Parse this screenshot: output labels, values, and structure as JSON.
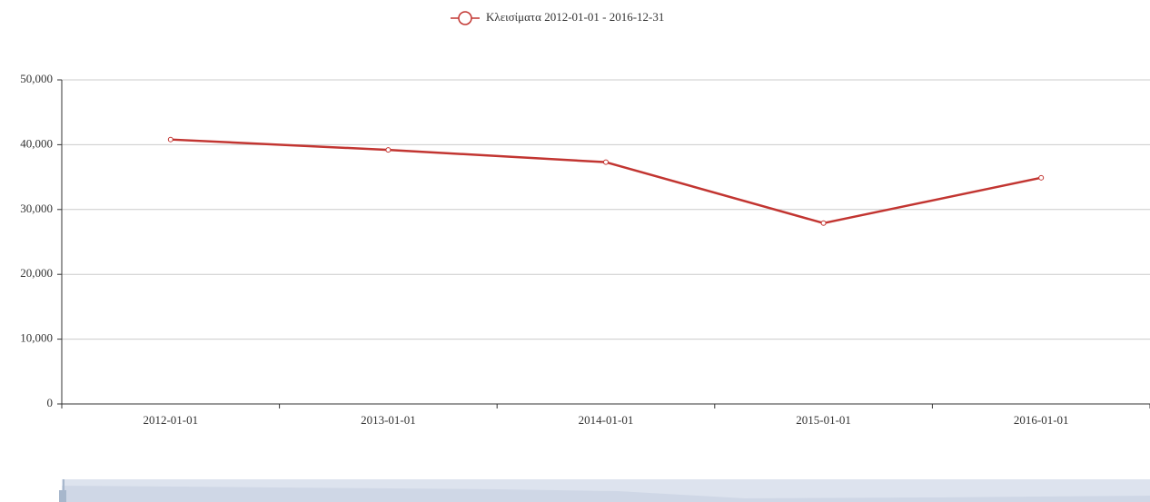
{
  "chart_data": {
    "type": "line",
    "legend": "Κλεισίματα 2012-01-01 - 2016-12-31",
    "categories": [
      "2012-01-01",
      "2013-01-01",
      "2014-01-01",
      "2015-01-01",
      "2016-01-01"
    ],
    "series": [
      {
        "name": "Κλεισίματα 2012-01-01 - 2016-12-31",
        "color": "#c23531",
        "values": [
          40800,
          39200,
          37300,
          27900,
          34900
        ]
      }
    ],
    "ylim": [
      0,
      50000
    ],
    "yticks": [
      0,
      {
        "value": 10000,
        "label": "10,000"
      },
      {
        "value": 20000,
        "label": "20,000"
      },
      {
        "value": 30000,
        "label": "30,000"
      },
      {
        "value": 40000,
        "label": "40,000"
      },
      {
        "value": 50000,
        "label": "50,000"
      }
    ],
    "grid": true
  }
}
